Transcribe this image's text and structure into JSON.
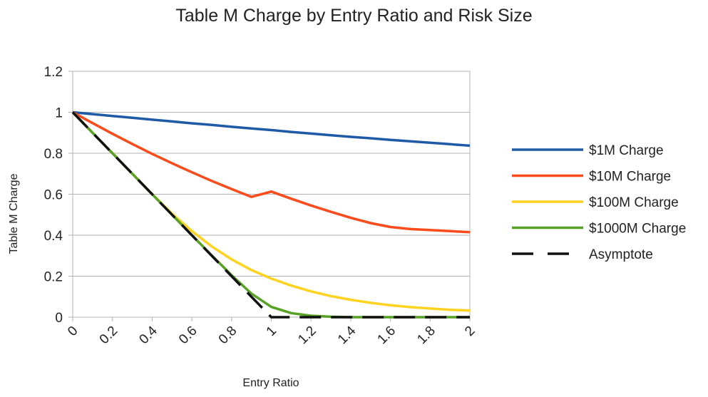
{
  "chart_data": {
    "type": "line",
    "title": "Table M Charge by Entry Ratio and Risk Size",
    "xlabel": "Entry Ratio",
    "ylabel": "Table M Charge",
    "xlim": [
      0,
      2
    ],
    "ylim": [
      0,
      1.2
    ],
    "x_ticks": [
      "0",
      "0.2",
      "0.4",
      "0.6",
      "0.8",
      "1",
      "1.2",
      "1.4",
      "1.6",
      "1.8",
      "2"
    ],
    "y_ticks": [
      "0",
      "0.2",
      "0.4",
      "0.6",
      "0.8",
      "1",
      "1.2"
    ],
    "grid": "horizontal",
    "legend_position": "right",
    "x": [
      0,
      0.1,
      0.2,
      0.3,
      0.4,
      0.5,
      0.6,
      0.7,
      0.8,
      0.9,
      1.0,
      1.1,
      1.2,
      1.3,
      1.4,
      1.5,
      1.6,
      1.7,
      1.8,
      1.9,
      2.0
    ],
    "series": [
      {
        "name": "$1M Charge",
        "color": "#1f5aa6",
        "dash": "solid",
        "values": [
          1.0,
          0.991,
          0.982,
          0.973,
          0.964,
          0.955,
          0.946,
          0.938,
          0.929,
          0.921,
          0.913,
          0.904,
          0.896,
          0.888,
          0.88,
          0.873,
          0.865,
          0.858,
          0.851,
          0.844,
          0.837
        ]
      },
      {
        "name": "$10M Charge",
        "color": "#ff4a1c",
        "dash": "solid",
        "values": [
          1.0,
          0.947,
          0.895,
          0.845,
          0.797,
          0.751,
          0.707,
          0.665,
          0.625,
          0.587,
          0.613,
          0.578,
          0.545,
          0.514,
          0.485,
          0.459,
          0.44,
          0.43,
          0.425,
          0.42,
          0.415
        ]
      },
      {
        "name": "$100M Charge",
        "color": "#ffd320",
        "dash": "solid",
        "values": [
          1.0,
          0.9,
          0.8,
          0.7,
          0.6,
          0.505,
          0.42,
          0.345,
          0.282,
          0.23,
          0.188,
          0.154,
          0.126,
          0.103,
          0.085,
          0.07,
          0.058,
          0.049,
          0.042,
          0.036,
          0.032
        ]
      },
      {
        "name": "$1000M Charge",
        "color": "#57a125",
        "dash": "solid",
        "values": [
          1.0,
          0.9,
          0.8,
          0.7,
          0.6,
          0.5,
          0.4,
          0.302,
          0.205,
          0.115,
          0.05,
          0.02,
          0.007,
          0.002,
          0.0,
          0.0,
          0.0,
          0.0,
          0.0,
          0.0,
          0.0
        ]
      },
      {
        "name": "Asymptote",
        "color": "#111111",
        "dash": "dashed",
        "values": [
          1.0,
          0.9,
          0.8,
          0.7,
          0.6,
          0.5,
          0.4,
          0.3,
          0.2,
          0.1,
          0.0,
          0.0,
          0.0,
          0.0,
          0.0,
          0.0,
          0.0,
          0.0,
          0.0,
          0.0,
          0.0
        ]
      }
    ]
  }
}
